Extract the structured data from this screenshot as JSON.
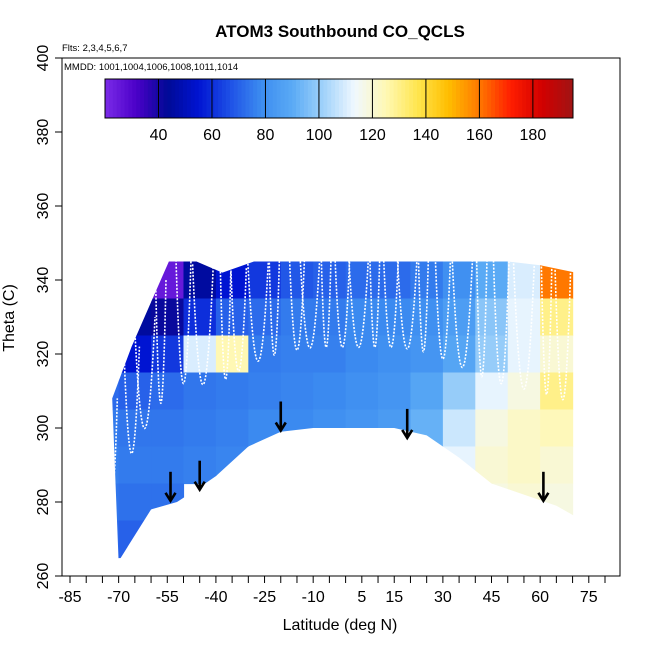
{
  "chart_data": {
    "type": "heatmap",
    "title": "ATOM3 Southbound CO_QCLS",
    "flights_note": "Flts: 2,3,4,5,6,7",
    "dates_note": "MMDD: 1001,1004,1006,1008,1011,1014",
    "xlabel": "Latitude (deg N)",
    "ylabel": "Theta (C)",
    "xlim": [
      -85,
      80
    ],
    "ylim": [
      260,
      400
    ],
    "x_tick_labels": [
      "-85",
      "-70",
      "-55",
      "-40",
      "-25",
      "-10",
      "5",
      "15",
      "30",
      "45",
      "60",
      "75"
    ],
    "x_tick_values": [
      -85,
      -70,
      -55,
      -40,
      -25,
      -10,
      5,
      15,
      30,
      45,
      60,
      75
    ],
    "x_minor_ticks": [
      -80,
      -75,
      -65,
      -60,
      -50,
      -45,
      -35,
      -30,
      -20,
      -15,
      -5,
      0,
      10,
      20,
      25,
      35,
      40,
      50,
      55,
      65,
      70,
      80
    ],
    "y_tick_labels": [
      "260",
      "280",
      "300",
      "320",
      "340",
      "360",
      "380",
      "400"
    ],
    "y_tick_values": [
      260,
      280,
      300,
      320,
      340,
      360,
      380,
      400
    ],
    "colorbar": {
      "range": [
        20,
        195
      ],
      "tick_labels": [
        "40",
        "60",
        "80",
        "100",
        "120",
        "140",
        "160",
        "180"
      ],
      "tick_values": [
        40,
        60,
        80,
        100,
        120,
        140,
        160,
        180
      ],
      "colors": [
        "#7b2be8",
        "#4b00c8",
        "#000a96",
        "#0014d2",
        "#1e50e6",
        "#3c8cf0",
        "#5aaaf5",
        "#a0d2fa",
        "#f0f8ff",
        "#fff8b4",
        "#ffe650",
        "#ffbe00",
        "#ff7800",
        "#ff1e00",
        "#d20000",
        "#a01414"
      ]
    },
    "arrows": [
      {
        "lat": -54,
        "theta": 286
      },
      {
        "lat": -45,
        "theta": 289
      },
      {
        "lat": -20,
        "theta": 305
      },
      {
        "lat": 19,
        "theta": 303
      },
      {
        "lat": 61,
        "theta": 286
      }
    ],
    "surface_boundary": [
      [
        -70,
        264
      ],
      [
        -60,
        278
      ],
      [
        -52,
        280
      ],
      [
        -45,
        284
      ],
      [
        -40,
        287
      ],
      [
        -30,
        295
      ],
      [
        -20,
        299
      ],
      [
        -10,
        300
      ],
      [
        5,
        300
      ],
      [
        15,
        300
      ],
      [
        25,
        298
      ],
      [
        35,
        292
      ],
      [
        45,
        285
      ],
      [
        55,
        282
      ],
      [
        65,
        279
      ],
      [
        71,
        276
      ]
    ],
    "top_boundary": [
      [
        -72,
        308
      ],
      [
        -66,
        322
      ],
      [
        -58,
        338
      ],
      [
        -52,
        350
      ],
      [
        -46,
        345
      ],
      [
        -38,
        342
      ],
      [
        -25,
        346
      ],
      [
        -10,
        349
      ],
      [
        5,
        349
      ],
      [
        20,
        349
      ],
      [
        35,
        347
      ],
      [
        50,
        345
      ],
      [
        60,
        344
      ],
      [
        71,
        342
      ]
    ],
    "mixing_ratio_grid": {
      "lat": [
        -75,
        -65,
        -55,
        -45,
        -35,
        -25,
        -15,
        -5,
        5,
        15,
        25,
        35,
        45,
        55,
        65
      ],
      "theta": [
        340,
        330,
        320,
        310,
        300,
        290,
        280,
        270
      ],
      "values": [
        [
          null,
          30,
          25,
          45,
          55,
          62,
          68,
          70,
          72,
          72,
          75,
          80,
          90,
          110,
          160
        ],
        [
          null,
          45,
          42,
          60,
          70,
          72,
          75,
          75,
          78,
          78,
          80,
          85,
          98,
          112,
          130
        ],
        [
          62,
          55,
          62,
          110,
          125,
          75,
          76,
          76,
          78,
          80,
          82,
          88,
          100,
          112,
          120
        ],
        [
          72,
          70,
          72,
          74,
          75,
          76,
          77,
          78,
          80,
          82,
          88,
          100,
          112,
          118,
          130
        ],
        [
          75,
          74,
          74,
          75,
          76,
          78,
          78,
          80,
          82,
          84,
          92,
          108,
          118,
          122,
          124
        ],
        [
          76,
          75,
          75,
          76,
          77,
          null,
          null,
          null,
          null,
          null,
          null,
          112,
          120,
          122,
          120
        ],
        [
          74,
          73,
          73,
          null,
          null,
          null,
          null,
          null,
          null,
          null,
          null,
          null,
          118,
          120,
          118
        ],
        [
          72,
          70,
          null,
          null,
          null,
          null,
          null,
          null,
          null,
          null,
          null,
          null,
          null,
          null,
          null
        ]
      ]
    }
  }
}
